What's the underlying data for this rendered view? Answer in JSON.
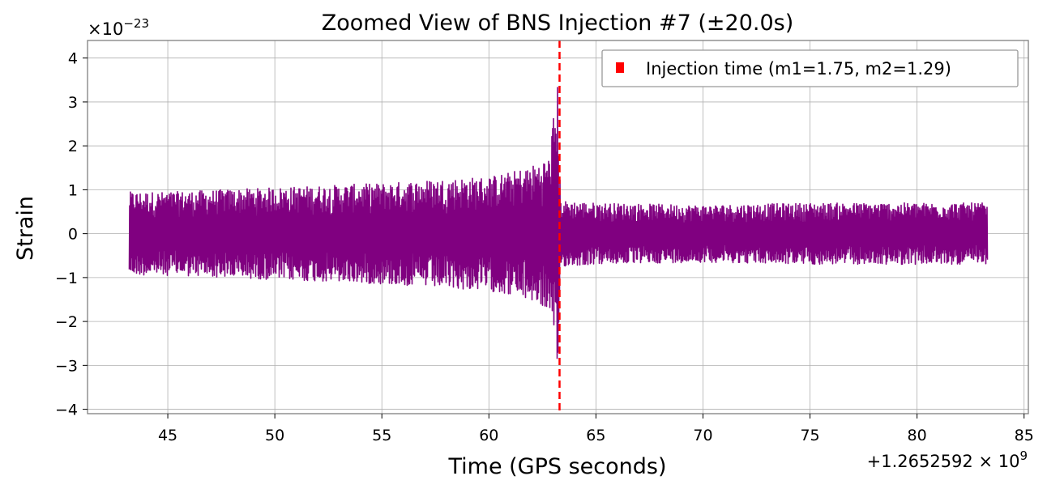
{
  "chart_data": {
    "type": "line",
    "title": "Zoomed View of BNS Injection #7 (±20.0s)",
    "xlabel": "Time (GPS seconds)",
    "ylabel": "Strain",
    "x_offset_label": "+1.2652592 × 10",
    "x_offset_exponent": "9",
    "y_scale_label": "×10",
    "y_scale_exponent": "−23",
    "xlim": [
      41.25,
      85.2
    ],
    "ylim": [
      -4.1,
      4.4
    ],
    "xticks": [
      45,
      50,
      55,
      60,
      65,
      70,
      75,
      80,
      85
    ],
    "xtick_labels": [
      "45",
      "50",
      "55",
      "60",
      "65",
      "70",
      "75",
      "80",
      "85"
    ],
    "yticks": [
      -4,
      -3,
      -2,
      -1,
      0,
      1,
      2,
      3,
      4
    ],
    "ytick_labels": [
      "−4",
      "−3",
      "−2",
      "−1",
      "0",
      "1",
      "2",
      "3",
      "4"
    ],
    "grid": true,
    "series": [
      {
        "name": "strain",
        "color": "#800080",
        "x_start": 43.2,
        "x_end": 83.3,
        "envelope": {
          "x": [
            43.2,
            45,
            50,
            55,
            58,
            60,
            61,
            62,
            62.8,
            63.2,
            63.35,
            65,
            70,
            75,
            80,
            83.3
          ],
          "amplitude": [
            0.95,
            0.95,
            1.05,
            1.15,
            1.25,
            1.3,
            1.4,
            1.55,
            1.75,
            3.5,
            0.75,
            0.7,
            0.65,
            0.7,
            0.7,
            0.7
          ]
        }
      }
    ],
    "annotations": [
      {
        "type": "vline",
        "x": 63.3,
        "color": "#ff0000",
        "style": "dashed"
      }
    ],
    "legend": {
      "position": "top-right",
      "entries": [
        {
          "label": "Injection time (m1=1.75, m2=1.29)",
          "color": "#ff0000",
          "marker": "square"
        }
      ]
    }
  }
}
